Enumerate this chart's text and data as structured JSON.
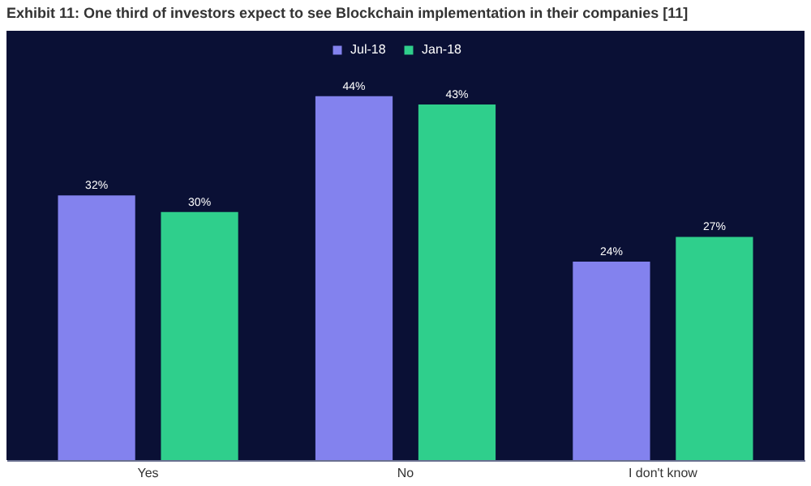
{
  "chart_data": {
    "type": "bar",
    "title": "Exhibit 11: One third of investors expect to see Blockchain implementation in their companies [11]",
    "categories": [
      "Yes",
      "No",
      "I don't know"
    ],
    "series": [
      {
        "name": "Jul-18",
        "color": "#8382ee",
        "values": [
          32,
          44,
          24
        ],
        "value_labels": [
          "32%",
          "44%",
          "24%"
        ]
      },
      {
        "name": "Jan-18",
        "color": "#2fcf8c",
        "values": [
          30,
          43,
          27
        ],
        "value_labels": [
          "30%",
          "43%",
          "27%"
        ]
      }
    ],
    "legend": "top",
    "grid": false
  }
}
